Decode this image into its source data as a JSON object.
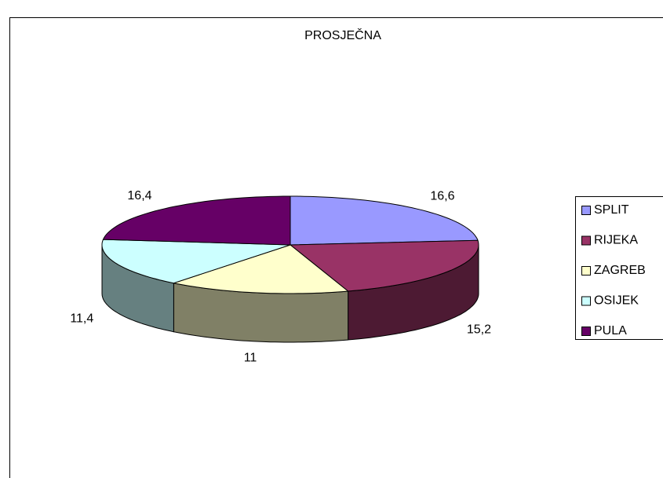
{
  "chart_data": {
    "type": "pie3d",
    "title": "PROSJEČNA",
    "categories": [
      "SPLIT",
      "RIJEKA",
      "ZAGREB",
      "OSIJEK",
      "PULA"
    ],
    "values": [
      16.6,
      15.2,
      11,
      11.4,
      16.4
    ],
    "value_labels": [
      "16,6",
      "15,2",
      "11",
      "11,4",
      "16,4"
    ],
    "colors": [
      "#9999ff",
      "#993366",
      "#ffffcc",
      "#ccffff",
      "#660066"
    ],
    "legend": "right"
  }
}
